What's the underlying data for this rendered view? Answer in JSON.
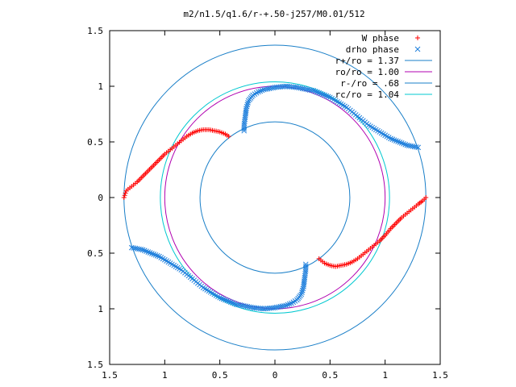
{
  "chart_data": {
    "type": "scatter",
    "title": "m2/n1.5/q1.6/r-+.50-j257/M0.01/512",
    "xlim": [
      -1.5,
      1.5
    ],
    "ylim": [
      -1.5,
      1.5
    ],
    "xticks": [
      {
        "value": -1.5,
        "label": "1.5"
      },
      {
        "value": -1.0,
        "label": "1"
      },
      {
        "value": -0.5,
        "label": "0.5"
      },
      {
        "value": 0.0,
        "label": "0"
      },
      {
        "value": 0.5,
        "label": "0.5"
      },
      {
        "value": 1.0,
        "label": "1"
      },
      {
        "value": 1.5,
        "label": "1.5"
      }
    ],
    "yticks": [
      {
        "value": 1.5,
        "label": "1.5"
      },
      {
        "value": 1.0,
        "label": "1"
      },
      {
        "value": 0.5,
        "label": "0.5"
      },
      {
        "value": 0.0,
        "label": "0"
      },
      {
        "value": -0.5,
        "label": "0.5"
      },
      {
        "value": -1.0,
        "label": "1"
      },
      {
        "value": -1.5,
        "label": "1.5"
      }
    ],
    "legend_position": "top-right",
    "series": [
      {
        "name": "W phase",
        "kind": "points",
        "marker": "plus",
        "color": "#ff0000",
        "x": [
          -1.37,
          -1.35,
          -1.3,
          -1.25,
          -1.2,
          -1.15,
          -1.1,
          -1.05,
          -1.0,
          -0.95,
          -0.9,
          -0.85,
          -0.8,
          -0.75,
          -0.7,
          -0.65,
          -0.6,
          -0.55,
          -0.5,
          -0.45,
          -0.42,
          0.4,
          0.45,
          0.5,
          0.55,
          0.6,
          0.65,
          0.7,
          0.75,
          0.8,
          0.85,
          0.9,
          0.95,
          1.0,
          1.05,
          1.1,
          1.15,
          1.2,
          1.25,
          1.3,
          1.34,
          1.37
        ],
        "y": [
          0.0,
          0.06,
          0.1,
          0.14,
          0.19,
          0.24,
          0.29,
          0.34,
          0.39,
          0.43,
          0.47,
          0.51,
          0.55,
          0.58,
          0.6,
          0.61,
          0.61,
          0.6,
          0.59,
          0.57,
          0.55,
          -0.55,
          -0.59,
          -0.61,
          -0.62,
          -0.61,
          -0.6,
          -0.58,
          -0.55,
          -0.51,
          -0.47,
          -0.43,
          -0.39,
          -0.34,
          -0.28,
          -0.23,
          -0.18,
          -0.14,
          -0.1,
          -0.06,
          -0.03,
          0.0
        ]
      },
      {
        "name": "drho phase",
        "kind": "points",
        "marker": "cross",
        "color": "#1e7fdc",
        "x": [
          -0.28,
          -0.28,
          -0.27,
          -0.26,
          -0.24,
          -0.2,
          -0.15,
          -0.1,
          -0.05,
          0.0,
          0.05,
          0.1,
          0.15,
          0.2,
          0.25,
          0.3,
          0.35,
          0.4,
          0.45,
          0.5,
          0.55,
          0.6,
          0.65,
          0.7,
          0.75,
          0.8,
          0.85,
          0.9,
          0.95,
          1.0,
          1.05,
          1.1,
          1.15,
          1.2,
          1.25,
          1.3,
          0.28,
          0.28,
          0.27,
          0.26,
          0.24,
          0.2,
          0.15,
          0.1,
          0.05,
          0.0,
          -0.05,
          -0.1,
          -0.15,
          -0.2,
          -0.25,
          -0.3,
          -0.35,
          -0.4,
          -0.45,
          -0.5,
          -0.55,
          -0.6,
          -0.65,
          -0.7,
          -0.75,
          -0.8,
          -0.85,
          -0.9,
          -0.95,
          -1.0,
          -1.05,
          -1.1,
          -1.15,
          -1.2,
          -1.25,
          -1.3
        ],
        "y": [
          0.6,
          0.65,
          0.72,
          0.8,
          0.87,
          0.92,
          0.95,
          0.97,
          0.98,
          0.99,
          0.995,
          1.0,
          0.995,
          0.99,
          0.98,
          0.97,
          0.96,
          0.94,
          0.92,
          0.9,
          0.87,
          0.84,
          0.81,
          0.77,
          0.73,
          0.69,
          0.65,
          0.62,
          0.59,
          0.56,
          0.53,
          0.51,
          0.49,
          0.47,
          0.46,
          0.45,
          -0.6,
          -0.65,
          -0.72,
          -0.8,
          -0.87,
          -0.92,
          -0.95,
          -0.97,
          -0.98,
          -0.99,
          -0.995,
          -1.0,
          -0.995,
          -0.99,
          -0.98,
          -0.97,
          -0.96,
          -0.94,
          -0.92,
          -0.9,
          -0.87,
          -0.84,
          -0.81,
          -0.77,
          -0.73,
          -0.69,
          -0.65,
          -0.62,
          -0.59,
          -0.56,
          -0.53,
          -0.51,
          -0.49,
          -0.47,
          -0.46,
          -0.45
        ]
      },
      {
        "name": "r+/ro = 1.37",
        "kind": "circle",
        "radius": 1.37,
        "color": "#1a7fc8"
      },
      {
        "name": "ro/ro = 1.00",
        "kind": "circle",
        "radius": 1.0,
        "color": "#b000b0"
      },
      {
        "name": "r-/ro = .68",
        "kind": "circle",
        "radius": 0.68,
        "color": "#1a7fc8"
      },
      {
        "name": "rc/ro = 1.04",
        "kind": "circle",
        "radius": 1.04,
        "color": "#00c8d0"
      }
    ]
  }
}
